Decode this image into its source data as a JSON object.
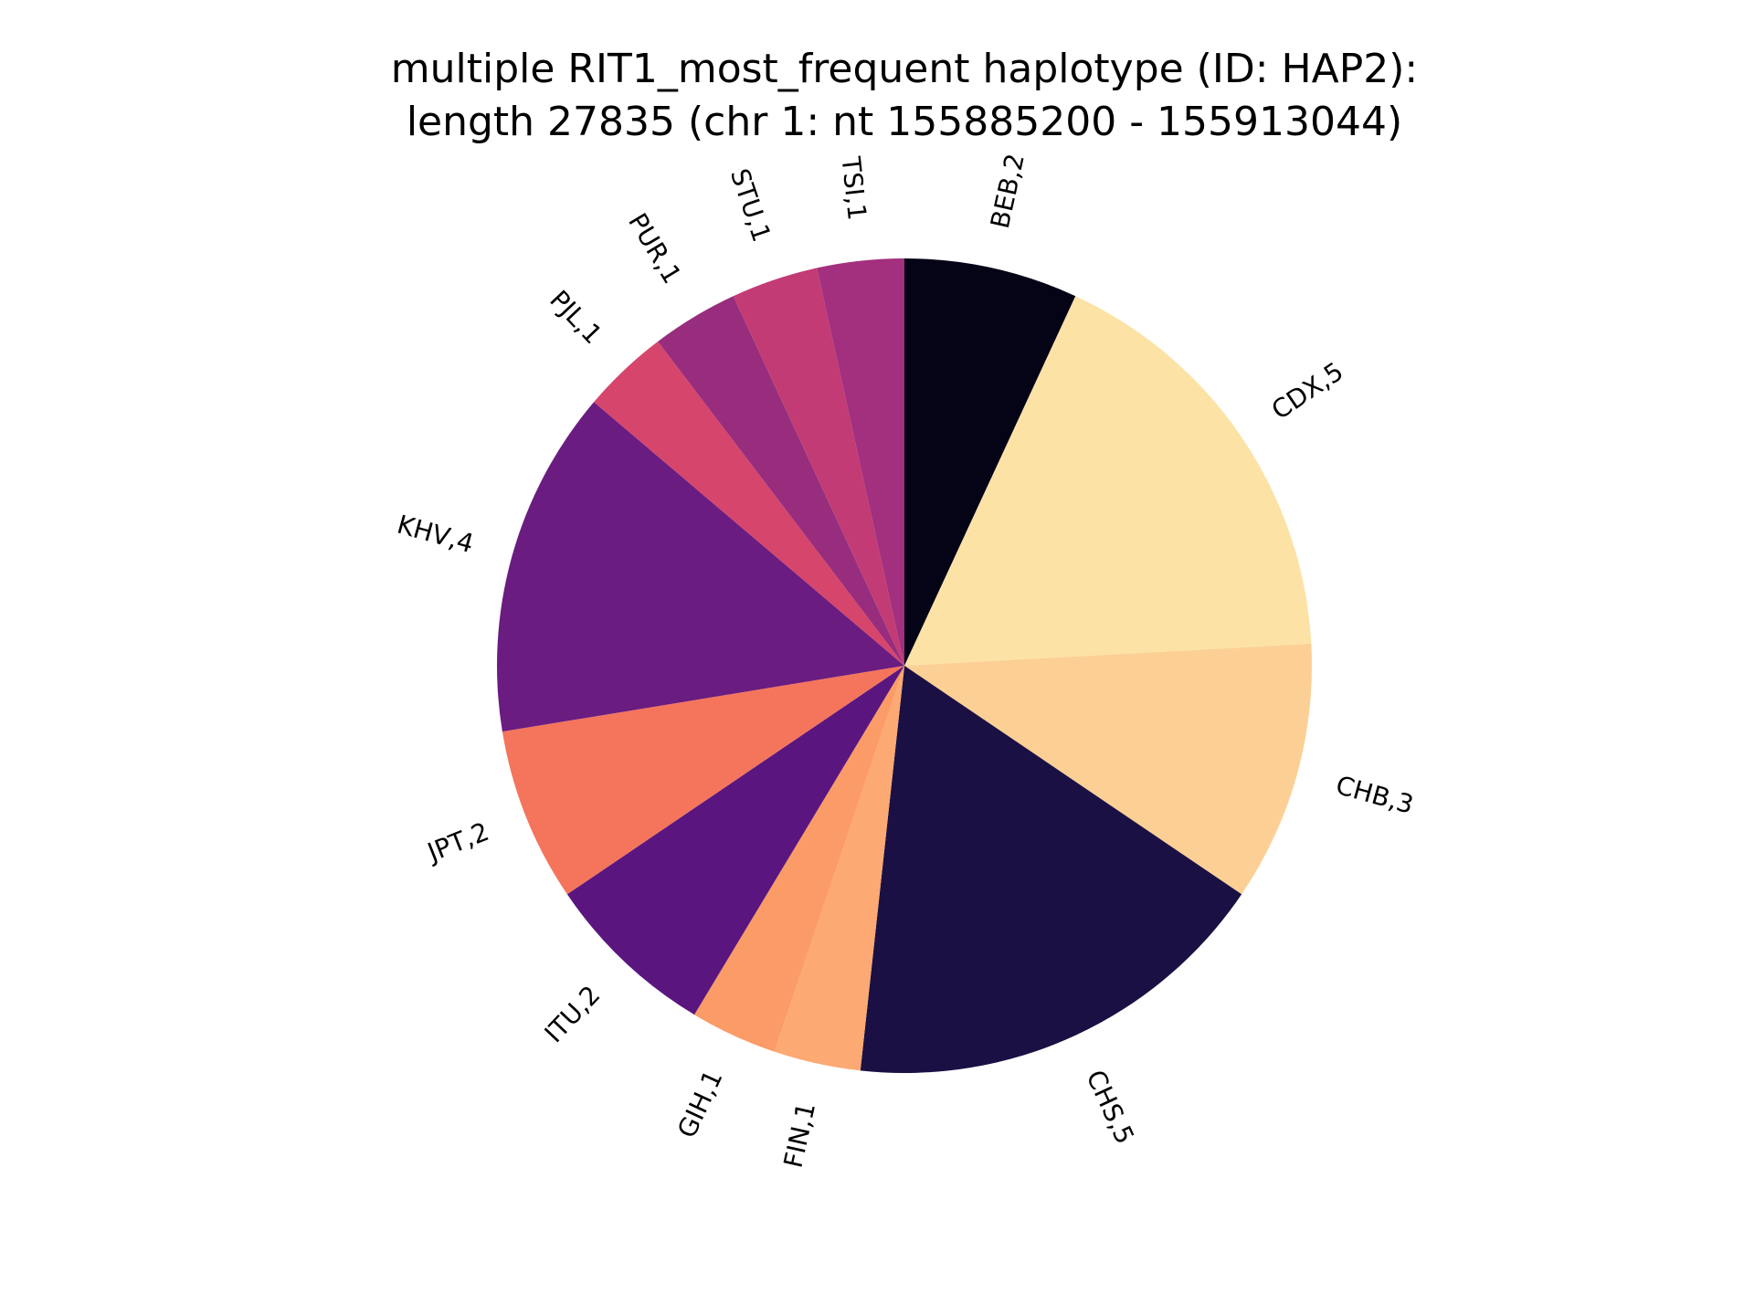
{
  "chart_data": {
    "type": "pie",
    "title": [
      "multiple RIT1_most_frequent haplotype (ID: HAP2):",
      "length 27835 (chr 1: nt 155885200 - 155913044)"
    ],
    "start_angle_deg": 90,
    "direction": "clockwise",
    "slices": [
      {
        "label": "BEB,2",
        "value": 2,
        "color": "#050417"
      },
      {
        "label": "CDX,5",
        "value": 5,
        "color": "#fde2a6"
      },
      {
        "label": "CHB,3",
        "value": 3,
        "color": "#fcd095"
      },
      {
        "label": "CHS,5",
        "value": 5,
        "color": "#1b1044"
      },
      {
        "label": "FIN,1",
        "value": 1,
        "color": "#fca973"
      },
      {
        "label": "GIH,1",
        "value": 1,
        "color": "#fb9b67"
      },
      {
        "label": "ITU,2",
        "value": 2,
        "color": "#5a167e"
      },
      {
        "label": "JPT,2",
        "value": 2,
        "color": "#f4755c"
      },
      {
        "label": "KHV,4",
        "value": 4,
        "color": "#6a1c80"
      },
      {
        "label": "PJL,1",
        "value": 1,
        "color": "#d6456c"
      },
      {
        "label": "PUR,1",
        "value": 1,
        "color": "#982d7d"
      },
      {
        "label": "STU,1",
        "value": 1,
        "color": "#c23b75"
      },
      {
        "label": "TSI,1",
        "value": 1,
        "color": "#a3307e"
      }
    ]
  }
}
